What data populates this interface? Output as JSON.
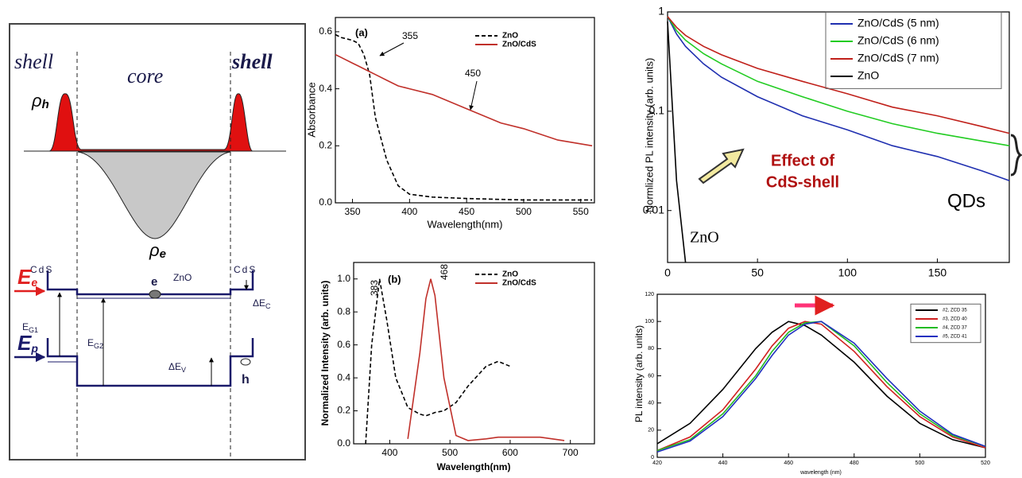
{
  "diagram": {
    "shell_left": "shell",
    "core": "core",
    "shell_right": "shell",
    "rho_h": {
      "symbol": "ρ",
      "sub": "h"
    },
    "rho_e": {
      "symbol": "ρ",
      "sub": "e"
    },
    "cds_left": "CdS",
    "cds_right": "CdS",
    "zno": "ZnO",
    "electron": "e",
    "hole": "h",
    "e_e": {
      "symbol": "E",
      "sub": "e"
    },
    "e_p": {
      "symbol": "E",
      "sub": "p"
    },
    "e_g1": {
      "symbol": "E",
      "sub": "G1"
    },
    "e_g2": {
      "symbol": "E",
      "sub": "G2"
    },
    "delta_ec": {
      "symbol": "ΔE",
      "sub": "C"
    },
    "delta_ev": {
      "symbol": "ΔE",
      "sub": "V"
    }
  },
  "chart_data": [
    {
      "type": "line",
      "xlabel": "Wavelength(nm)",
      "ylabel": "Absorbance",
      "annotations": [
        "(a)",
        "355",
        "450"
      ],
      "x": [
        335,
        340,
        350,
        355,
        360,
        365,
        370,
        380,
        390,
        400,
        420,
        450,
        480,
        500,
        530,
        560
      ],
      "xlim": [
        335,
        562
      ],
      "ylim": [
        0,
        0.65
      ],
      "xticks": [
        350,
        400,
        450,
        500,
        550
      ],
      "yticks": [
        {
          "value": 0,
          "label": "0.0"
        },
        0.2,
        0.4,
        0.6
      ],
      "legend": "upper right",
      "series": [
        {
          "name": "ZnO",
          "color": "#000000",
          "dash": true,
          "values": [
            0.59,
            0.58,
            0.57,
            0.56,
            0.52,
            0.45,
            0.3,
            0.15,
            0.06,
            0.03,
            0.02,
            0.015,
            0.012,
            0.01,
            0.01,
            0.01
          ]
        },
        {
          "name": "ZnO/CdS",
          "color": "#c0302a",
          "values": [
            0.52,
            0.51,
            0.49,
            0.48,
            0.47,
            0.46,
            0.45,
            0.43,
            0.41,
            0.4,
            0.38,
            0.33,
            0.28,
            0.26,
            0.22,
            0.2
          ]
        }
      ]
    },
    {
      "type": "line",
      "xlabel": "Wavelength(nm)",
      "ylabel": "Normalized Intensity (arb. units)",
      "annotations": [
        "(b)",
        "383",
        "468"
      ],
      "x": [
        360,
        370,
        383,
        395,
        410,
        430,
        450,
        460,
        468,
        475,
        490,
        510,
        530,
        560,
        580,
        600,
        620,
        650,
        690
      ],
      "xlim": [
        340,
        740
      ],
      "ylim": [
        0,
        1.1
      ],
      "xticks": [
        400,
        500,
        600,
        700
      ],
      "yticks": [
        {
          "value": 0,
          "label": "0.0"
        },
        0.2,
        0.4,
        0.6,
        0.8,
        {
          "value": 1,
          "label": "1.0"
        }
      ],
      "legend": "upper right",
      "series": [
        {
          "name": "ZnO",
          "color": "#000000",
          "dash": true,
          "values": [
            0,
            0.6,
            1.0,
            0.75,
            0.4,
            0.22,
            0.18,
            0.17,
            0.18,
            0.19,
            0.2,
            0.25,
            0.35,
            0.47,
            0.5,
            0.47,
            null,
            null,
            null
          ]
        },
        {
          "name": "ZnO/CdS",
          "color": "#c0302a",
          "values": [
            null,
            null,
            null,
            null,
            null,
            0.03,
            0.55,
            0.88,
            1.0,
            0.9,
            0.4,
            0.05,
            0.02,
            0.03,
            0.04,
            0.04,
            0.04,
            0.04,
            0.02
          ]
        }
      ]
    },
    {
      "type": "line",
      "ylabel": "Normlized PL intensity (arb. units)",
      "yscale": "log",
      "annotations": [
        "Effect of",
        "CdS-shell",
        "QDs",
        "ZnO"
      ],
      "x": [
        0,
        5,
        10,
        20,
        30,
        50,
        75,
        100,
        125,
        150,
        175,
        190
      ],
      "xlim": [
        0,
        190
      ],
      "ylim": [
        0.003,
        1
      ],
      "xticks": [
        0,
        50,
        100,
        150
      ],
      "yticks": [
        0.01,
        0.1,
        1
      ],
      "legend": "upper right",
      "series": [
        {
          "name": "ZnO/CdS (5 nm)",
          "color": "#1f2fb0",
          "values": [
            0.9,
            0.6,
            0.45,
            0.3,
            0.22,
            0.14,
            0.09,
            0.065,
            0.045,
            0.035,
            0.025,
            0.02
          ]
        },
        {
          "name": "ZnO/CdS (6 nm)",
          "color": "#22cc22",
          "values": [
            0.9,
            0.65,
            0.52,
            0.38,
            0.3,
            0.2,
            0.14,
            0.1,
            0.075,
            0.06,
            0.05,
            0.045
          ]
        },
        {
          "name": "ZnO/CdS (7 nm)",
          "color": "#c0201a",
          "values": [
            0.9,
            0.7,
            0.58,
            0.45,
            0.37,
            0.27,
            0.2,
            0.15,
            0.11,
            0.09,
            0.07,
            0.06
          ]
        },
        {
          "name": "ZnO",
          "color": "#000000",
          "values": [
            0.8,
            0.02,
            0.003,
            null,
            null,
            null,
            null,
            null,
            null,
            null,
            null,
            null
          ]
        }
      ]
    },
    {
      "type": "line",
      "xlabel": "wavelength (nm)",
      "ylabel": "PL intensity (arb. units)",
      "x": [
        420,
        430,
        440,
        450,
        455,
        460,
        465,
        470,
        480,
        490,
        500,
        510,
        520
      ],
      "xlim": [
        420,
        520
      ],
      "ylim": [
        0,
        120
      ],
      "xticks": [
        420,
        440,
        460,
        480,
        500,
        520
      ],
      "yticks": [
        0,
        20,
        40,
        60,
        80,
        100,
        120
      ],
      "legend": "upper right",
      "series": [
        {
          "name": "#2, ZCD 35",
          "color": "#000000",
          "values": [
            10,
            25,
            50,
            80,
            92,
            100,
            97,
            90,
            70,
            45,
            25,
            13,
            7
          ]
        },
        {
          "name": "#3, ZCD 40",
          "color": "#d02020",
          "values": [
            5,
            15,
            35,
            65,
            82,
            95,
            100,
            98,
            78,
            52,
            30,
            15,
            7
          ]
        },
        {
          "name": "#4, ZCD 37",
          "color": "#22bb22",
          "values": [
            5,
            13,
            32,
            60,
            78,
            92,
            99,
            100,
            82,
            55,
            32,
            16,
            8
          ]
        },
        {
          "name": "#5, ZCD 41",
          "color": "#2030c0",
          "values": [
            4,
            12,
            30,
            58,
            75,
            90,
            98,
            100,
            84,
            58,
            34,
            17,
            8
          ]
        }
      ]
    }
  ]
}
